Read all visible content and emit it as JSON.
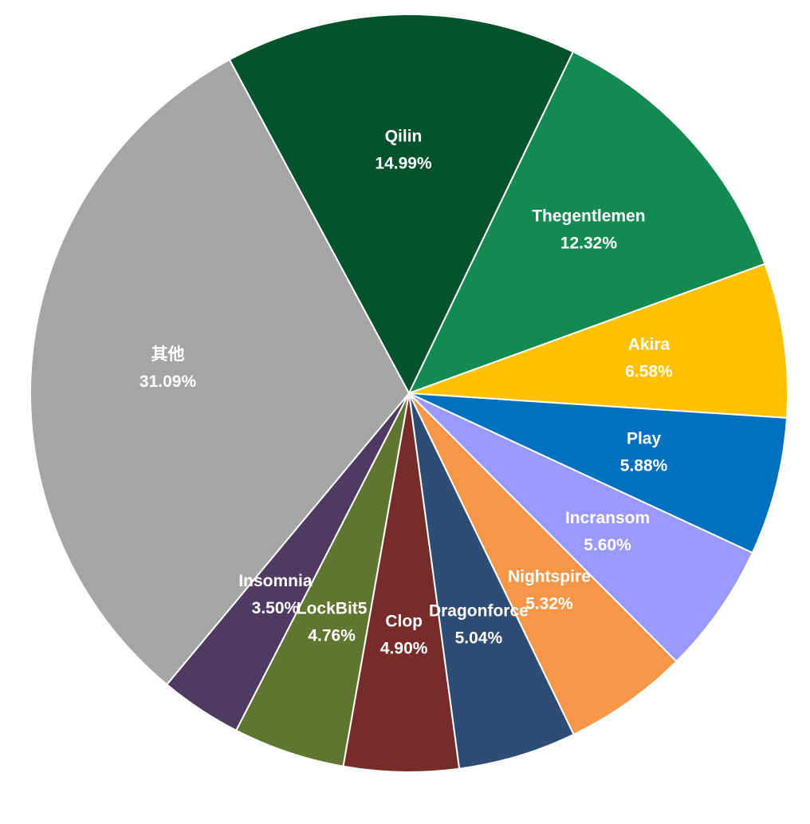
{
  "chart_data": {
    "type": "pie",
    "categories": [
      "Qilin",
      "Thegentlemen",
      "Akira",
      "Play",
      "Incransom",
      "Nightspire",
      "Dragonforce",
      "Clop",
      "LockBit5",
      "Insomnia",
      "其他"
    ],
    "values": [
      14.99,
      12.32,
      6.58,
      5.88,
      5.6,
      5.32,
      5.04,
      4.9,
      4.76,
      3.5,
      31.09
    ],
    "value_labels": [
      "14.99%",
      "12.32%",
      "6.58%",
      "5.88%",
      "5.60%",
      "5.32%",
      "5.04%",
      "4.90%",
      "4.76%",
      "3.50%",
      "31.09%"
    ],
    "colors": [
      "#05532c",
      "#138a4f",
      "#ffc000",
      "#0070c0",
      "#9999ff",
      "#f79646",
      "#2e4d75",
      "#772c2a",
      "#5f7530",
      "#4f3a62",
      "#a5a5a5"
    ]
  }
}
